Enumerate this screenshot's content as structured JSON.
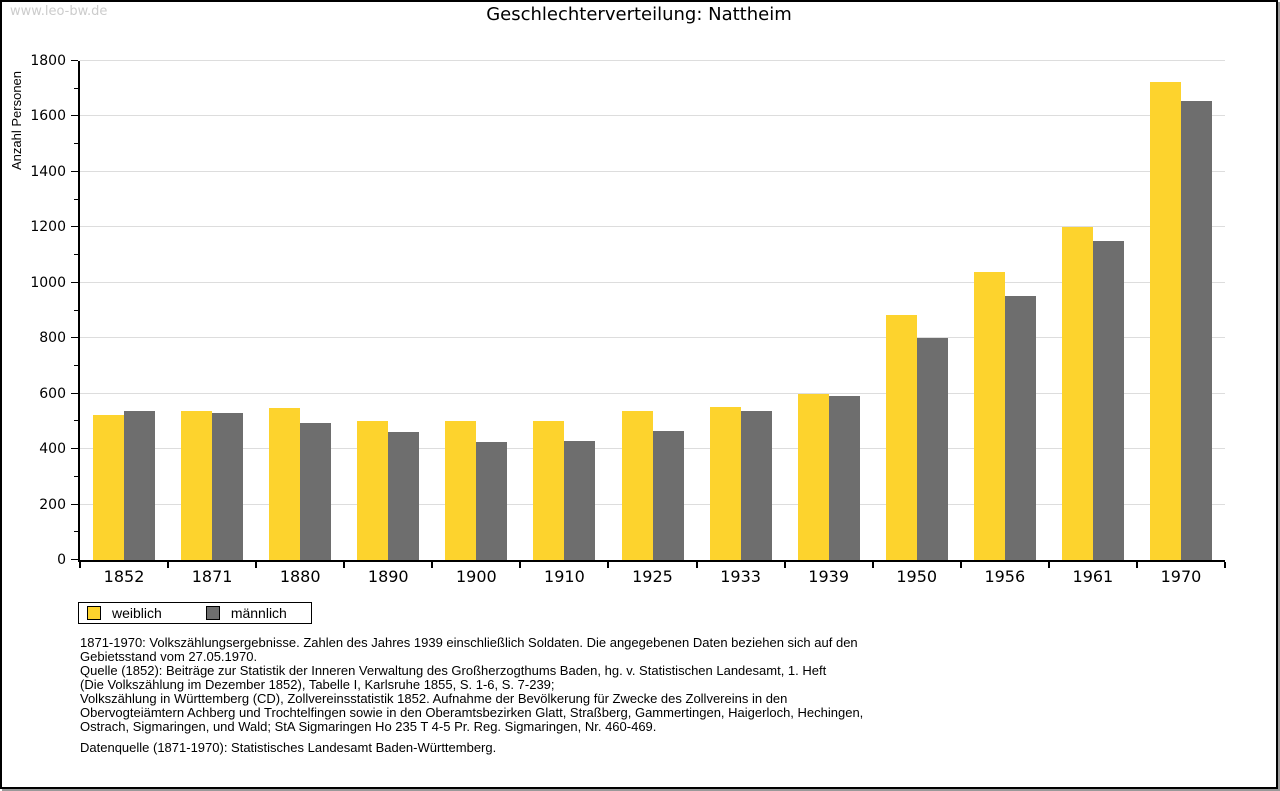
{
  "watermark": "www.leo-bw.de",
  "chart_data": {
    "type": "bar",
    "title": "Geschlechterverteilung: Nattheim",
    "xlabel": "",
    "ylabel": "Anzahl Personen",
    "ylim": [
      0,
      1800
    ],
    "ytick_step": 200,
    "minor_tick_step": 100,
    "grid": true,
    "legend_position": "bottom-left",
    "categories": [
      "1852",
      "1871",
      "1880",
      "1890",
      "1900",
      "1910",
      "1925",
      "1933",
      "1939",
      "1950",
      "1956",
      "1961",
      "1970"
    ],
    "series": [
      {
        "name": "weiblich",
        "color": "#FDD32D",
        "values": [
          524,
          539,
          549,
          500,
          503,
          500,
          539,
          553,
          600,
          885,
          1038,
          1200,
          1726
        ]
      },
      {
        "name": "männlich",
        "color": "#6E6E6E",
        "values": [
          538,
          532,
          494,
          461,
          426,
          429,
          464,
          536,
          590,
          801,
          953,
          1151,
          1657
        ]
      }
    ]
  },
  "colors": {
    "gridline": "#DDDDDD",
    "axis": "#000000",
    "watermark": "#CCCCCC"
  },
  "footer": {
    "lines": [
      "1871-1970: Volkszählungsergebnisse. Zahlen des Jahres 1939 einschließlich Soldaten. Die angegebenen Daten beziehen sich auf den",
      "Gebietsstand vom 27.05.1970.",
      "Quelle (1852): Beiträge zur Statistik der Inneren Verwaltung des Großherzogthums Baden, hg. v. Statistischen Landesamt, 1. Heft",
      "(Die Volkszählung im Dezember 1852), Tabelle I, Karlsruhe 1855, S. 1-6, S. 7-239;",
      "Volkszählung in Württemberg (CD), Zollvereinsstatistik 1852. Aufnahme der Bevölkerung für Zwecke des Zollvereins in den",
      "Obervogteiämtern Achberg und Trochtelfingen sowie in den Oberamtsbezirken Glatt, Straßberg, Gammertingen, Haigerloch, Hechingen,",
      "Ostrach, Sigmaringen, und Wald; StA Sigmaringen Ho 235 T 4-5 Pr. Reg. Sigmaringen, Nr. 460-469.",
      "",
      "Datenquelle (1871-1970): Statistisches Landesamt Baden-Württemberg."
    ]
  }
}
